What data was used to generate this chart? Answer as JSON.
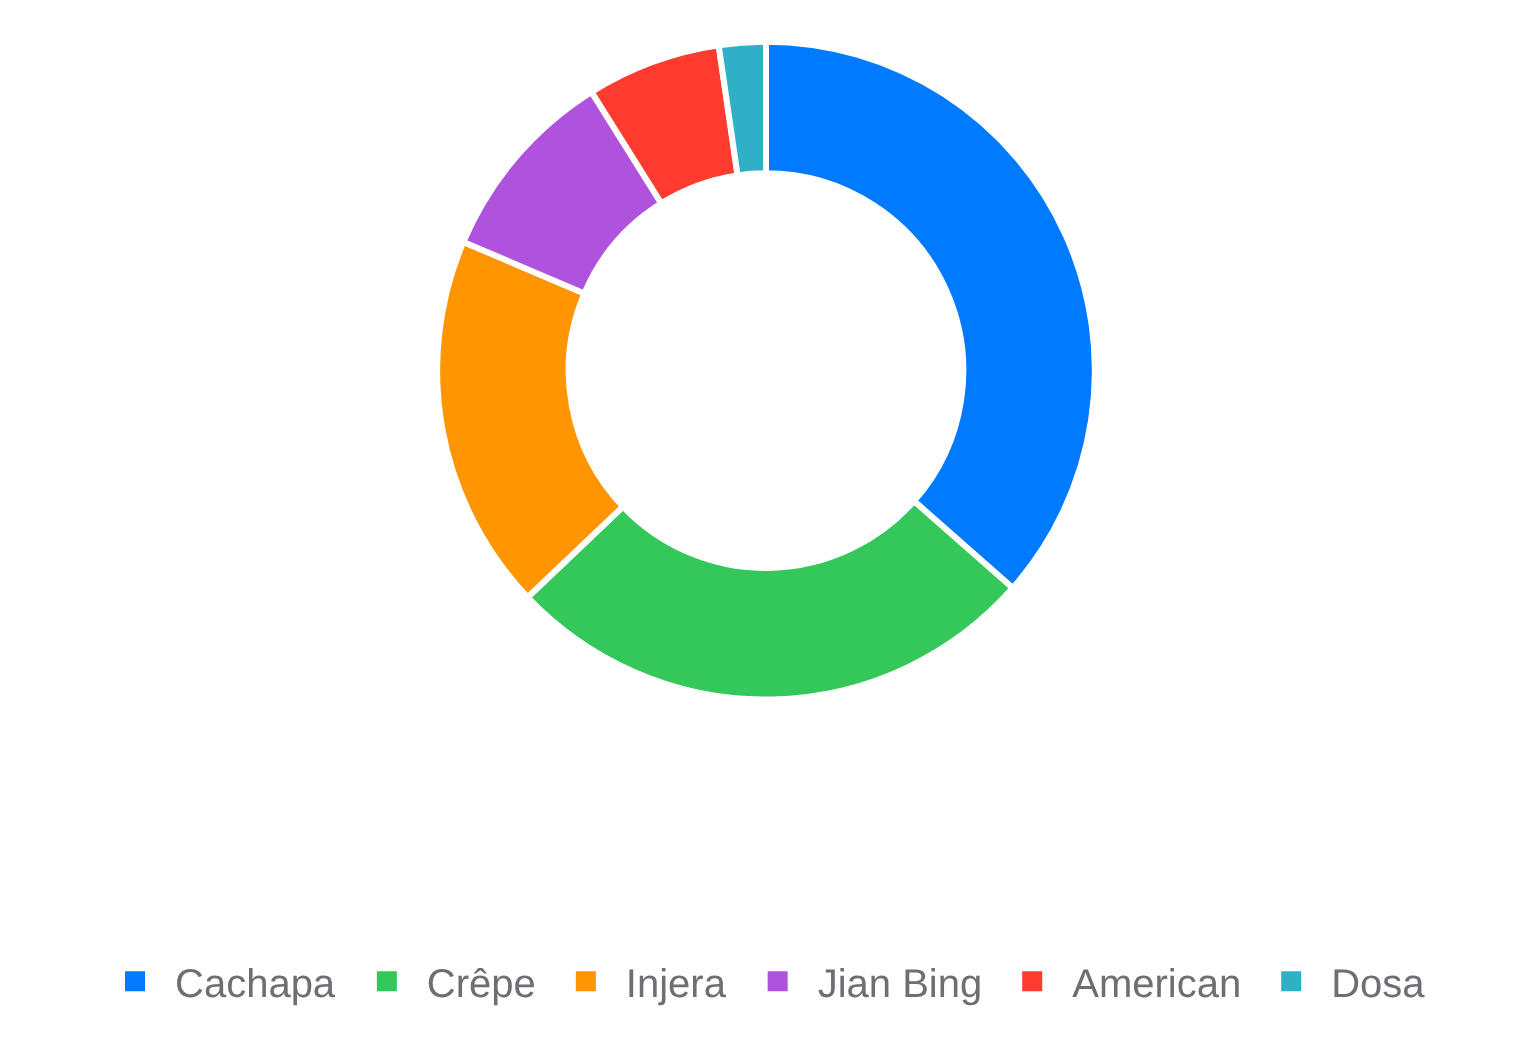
{
  "chart_data": {
    "type": "donut",
    "categories": [
      "Cachapa",
      "Crêpe",
      "Injera",
      "Jian Bing",
      "American",
      "Dosa"
    ],
    "values": [
      36.5,
      26.4,
      18.5,
      9.7,
      6.6,
      2.3
    ],
    "colors": [
      "#007aff",
      "#34c759",
      "#ff9500",
      "#af52de",
      "#ff3b30",
      "#30b0c7"
    ],
    "legend": "bottom"
  }
}
